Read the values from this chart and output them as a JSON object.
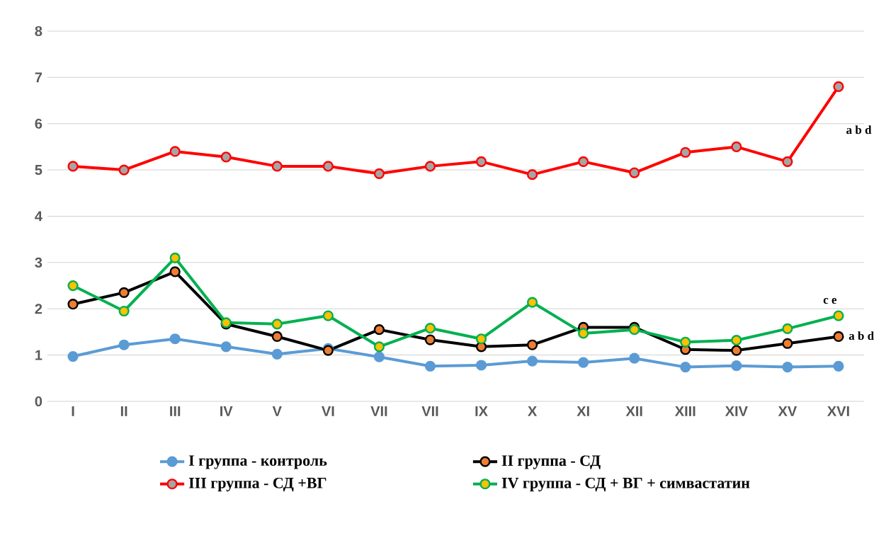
{
  "chart_data": {
    "type": "line",
    "categories": [
      "I",
      "II",
      "III",
      "IV",
      "V",
      "VI",
      "VII",
      "VII",
      "IX",
      "X",
      "XI",
      "XII",
      "XIII",
      "XIV",
      "XV",
      "XVI"
    ],
    "series": [
      {
        "name": "I группа - контроль",
        "color": "#5b9bd5",
        "values": [
          0.97,
          1.22,
          1.35,
          1.18,
          1.02,
          1.14,
          0.96,
          0.76,
          0.78,
          0.87,
          0.84,
          0.93,
          0.74,
          0.77,
          0.74,
          0.76
        ]
      },
      {
        "name": "II группа - СД",
        "color": "#000000",
        "values": [
          2.1,
          2.35,
          2.8,
          1.67,
          1.4,
          1.1,
          1.55,
          1.33,
          1.18,
          1.22,
          1.6,
          1.6,
          1.12,
          1.1,
          1.25,
          1.4
        ]
      },
      {
        "name": "III группа - СД +ВГ",
        "color": "#ff0000",
        "values": [
          5.08,
          5.0,
          5.4,
          5.28,
          5.08,
          5.08,
          4.92,
          5.08,
          5.18,
          4.9,
          5.18,
          4.94,
          5.38,
          5.5,
          5.18,
          6.8
        ]
      },
      {
        "name": "IV группа - СД + ВГ + симвастатин",
        "color": "#00b050",
        "values": [
          2.5,
          1.95,
          3.1,
          1.7,
          1.67,
          1.85,
          1.18,
          1.58,
          1.35,
          2.14,
          1.47,
          1.55,
          1.28,
          1.32,
          1.57,
          1.85
        ]
      }
    ],
    "ylim": [
      0,
      8
    ],
    "yticks": [
      0,
      1,
      2,
      3,
      4,
      5,
      6,
      7,
      8
    ],
    "grid": "y",
    "legend": "bottom",
    "marker": "circle",
    "annotations": [
      "a b d",
      "c e",
      "a b d"
    ]
  }
}
